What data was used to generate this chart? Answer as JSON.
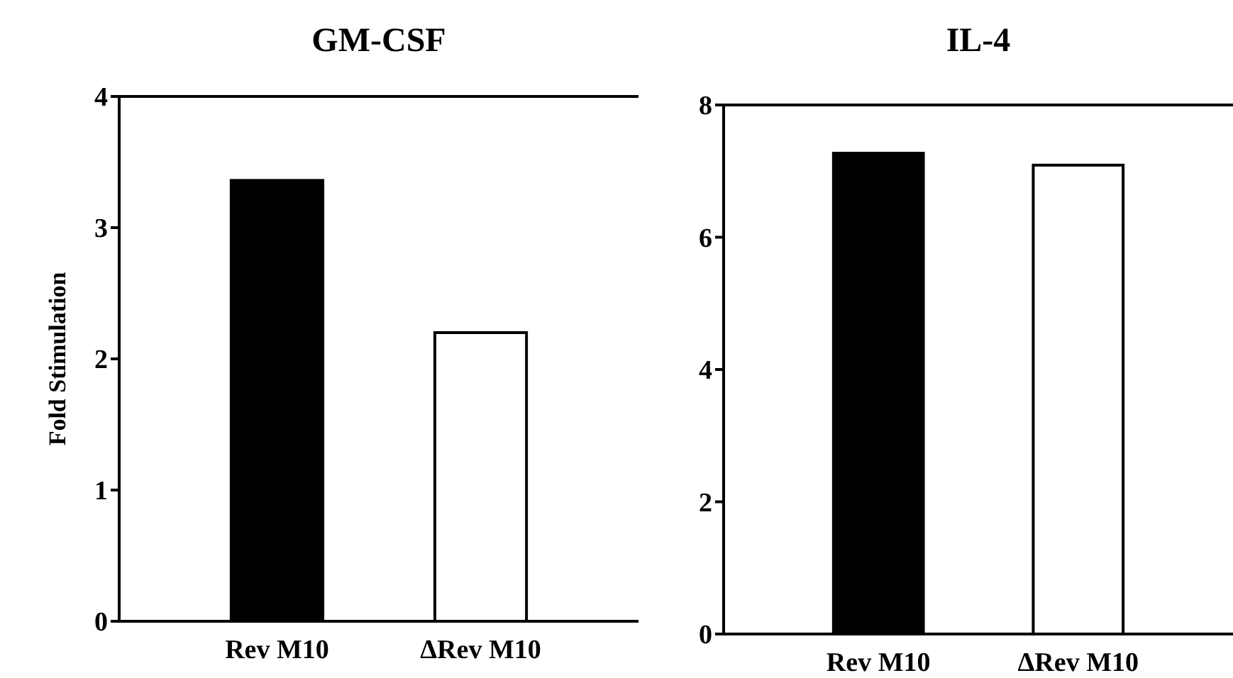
{
  "chart_data": [
    {
      "type": "bar",
      "title": "GM-CSF",
      "ylabel": "Fold Stimulation",
      "categories": [
        "Rev M10",
        "ΔRev M10"
      ],
      "values": [
        3.36,
        2.2
      ],
      "colors": [
        "#000000",
        "#ffffff"
      ],
      "ylim": [
        0,
        4
      ],
      "yticks": [
        0,
        1,
        2,
        3,
        4
      ]
    },
    {
      "type": "bar",
      "title": "IL-4",
      "categories": [
        "Rev M10",
        "ΔRev M10"
      ],
      "values": [
        7.27,
        7.09
      ],
      "colors": [
        "#000000",
        "#ffffff"
      ],
      "ylim": [
        0,
        8
      ],
      "yticks": [
        0,
        2,
        4,
        6,
        8
      ]
    }
  ]
}
